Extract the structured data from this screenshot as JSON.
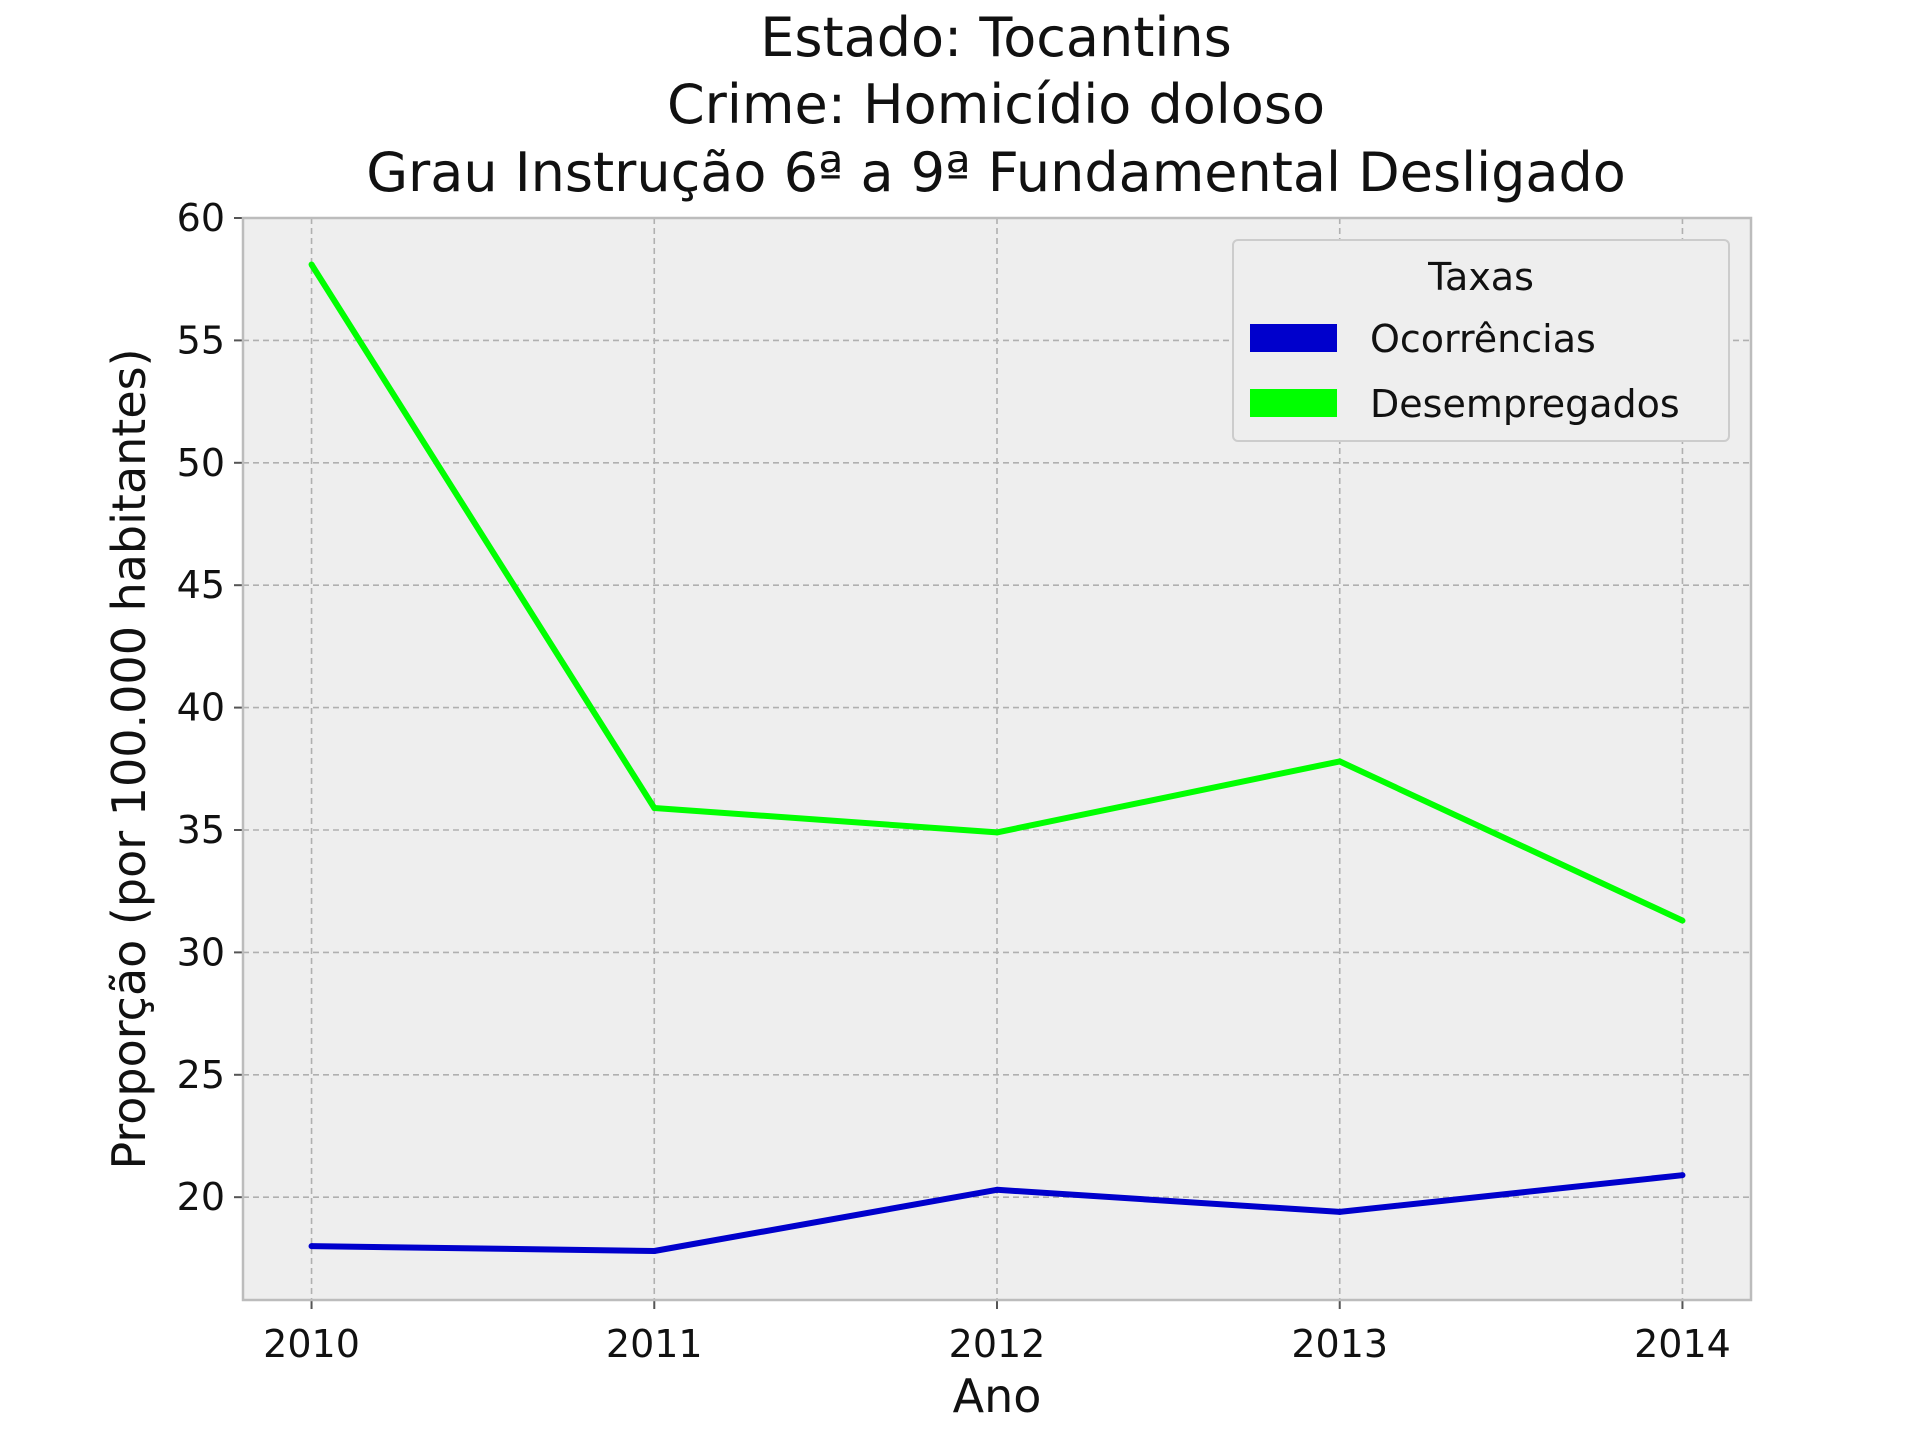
{
  "chart_data": {
    "type": "line",
    "title_lines": [
      "Estado: Tocantins",
      "Crime: Homicídio doloso",
      "Grau Instrução  6ª a 9ª Fundamental   Desligado"
    ],
    "xlabel": "Ano",
    "ylabel": "Proporção (por 100.000 habitantes)",
    "x": [
      2010,
      2011,
      2012,
      2013,
      2014
    ],
    "x_tick_labels": [
      "2010",
      "2011",
      "2012",
      "2013",
      "2014"
    ],
    "xlim": [
      2009.8,
      2014.2
    ],
    "ylim": [
      15.8,
      60
    ],
    "y_ticks": [
      20,
      25,
      30,
      35,
      40,
      45,
      50,
      55,
      60
    ],
    "y_tick_labels": [
      "20",
      "25",
      "30",
      "35",
      "40",
      "45",
      "50",
      "55",
      "60"
    ],
    "grid": true,
    "legend": {
      "title": "Taxas",
      "placement": "top-right"
    },
    "series": [
      {
        "name": "Ocorrências",
        "color": "#0000cc",
        "values": [
          18.0,
          17.8,
          20.3,
          19.4,
          20.9
        ]
      },
      {
        "name": "Desempregados",
        "color": "#00ff00",
        "values": [
          58.1,
          35.9,
          34.9,
          37.8,
          31.3
        ]
      }
    ],
    "background_color": "#eeeeee",
    "grid_color": "#b0b0b0"
  }
}
